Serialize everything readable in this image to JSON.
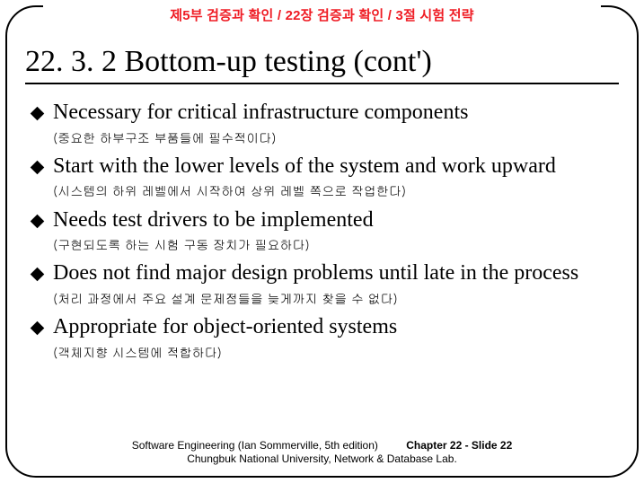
{
  "breadcrumb": "제5부 검증과 확인 / 22장 검증과 확인 / 3절 시험 전략",
  "title": "22. 3. 2 Bottom-up testing (cont')",
  "bullets": [
    {
      "main": "Necessary for critical infrastructure components",
      "sub": "(중요한 하부구조 부품들에 필수적이다)"
    },
    {
      "main": "Start with the lower levels of the system and work upward",
      "sub": "(시스템의 하위 레벨에서 시작하여 상위 레벨 쪽으로 작업한다)"
    },
    {
      "main": "Needs test drivers to be implemented",
      "sub": "(구현되도록 하는 시험 구동 장치가 필요하다)"
    },
    {
      "main": "Does not find major design problems until late in the process",
      "sub": "(처리 과정에서 주요 설계 문제점들을 늦게까지 찾을 수 없다)"
    },
    {
      "main": "Appropriate for object-oriented systems",
      "sub": "(객체지향 시스템에 적합하다)"
    }
  ],
  "footer": {
    "book": "Software Engineering (Ian Sommerville, 5th edition)",
    "pageref": "Chapter 22 - Slide 22",
    "affiliation": "Chungbuk National University, Network & Database Lab."
  },
  "colors": {
    "accent": "#ef1c24",
    "text": "#000000",
    "background": "#ffffff",
    "rule": "#000000"
  },
  "typography": {
    "title_fontsize": 34,
    "bullet_main_fontsize": 24,
    "bullet_sub_fontsize": 14,
    "breadcrumb_fontsize": 15,
    "footer_fontsize": 12
  },
  "layout": {
    "frame_border_radius": 34,
    "frame_border_width": 2.5,
    "bullet_marker": "diamond",
    "bullet_marker_size": 11
  }
}
